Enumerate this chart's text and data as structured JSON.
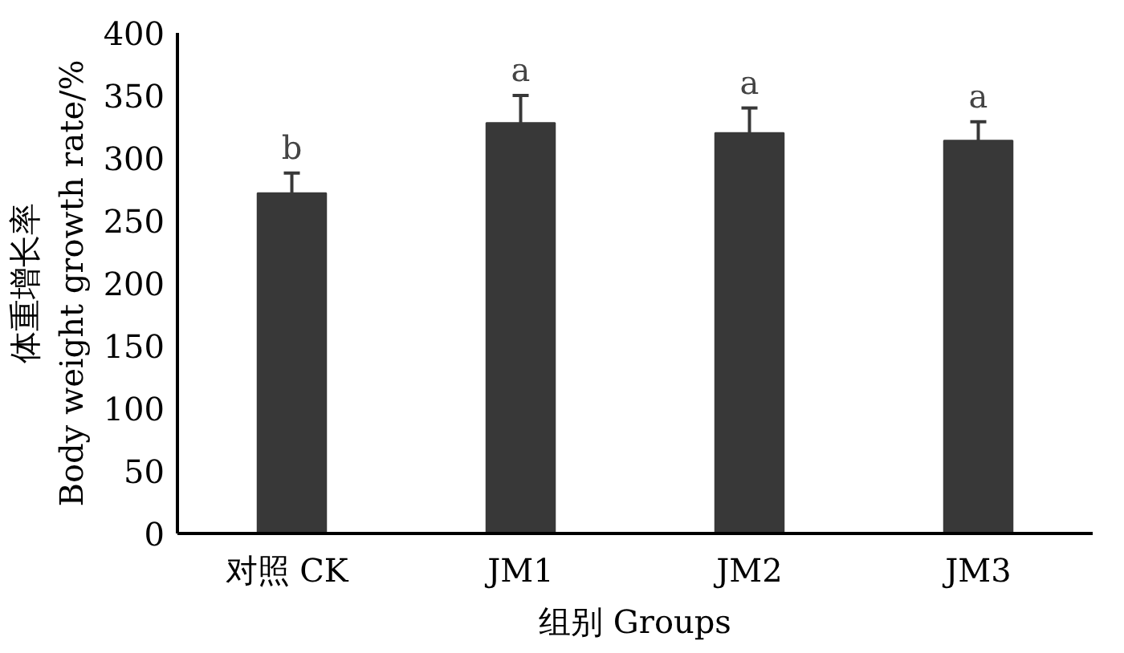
{
  "chart_data": {
    "type": "bar",
    "xlabel": "组别 Groups",
    "ylabel": "体重增长率\nBody weight growth rate/%",
    "categories": [
      "对照  CK",
      "JM1",
      "JM2",
      "JM3"
    ],
    "values": [
      272,
      328,
      320,
      314
    ],
    "errors": [
      16,
      22,
      20,
      15
    ],
    "color": "#383838",
    "ylim": [
      0,
      400
    ],
    "yticks": [
      0,
      50,
      100,
      150,
      200,
      250,
      300,
      350,
      400
    ],
    "grid": false,
    "annotations": [
      {
        "text": "b",
        "x": "对照  CK",
        "y": 288
      },
      {
        "text": "a",
        "x": "JM1",
        "y": 350
      },
      {
        "text": "a",
        "x": "JM2",
        "y": 340
      },
      {
        "text": "a",
        "x": "JM3",
        "y": 329
      }
    ]
  }
}
